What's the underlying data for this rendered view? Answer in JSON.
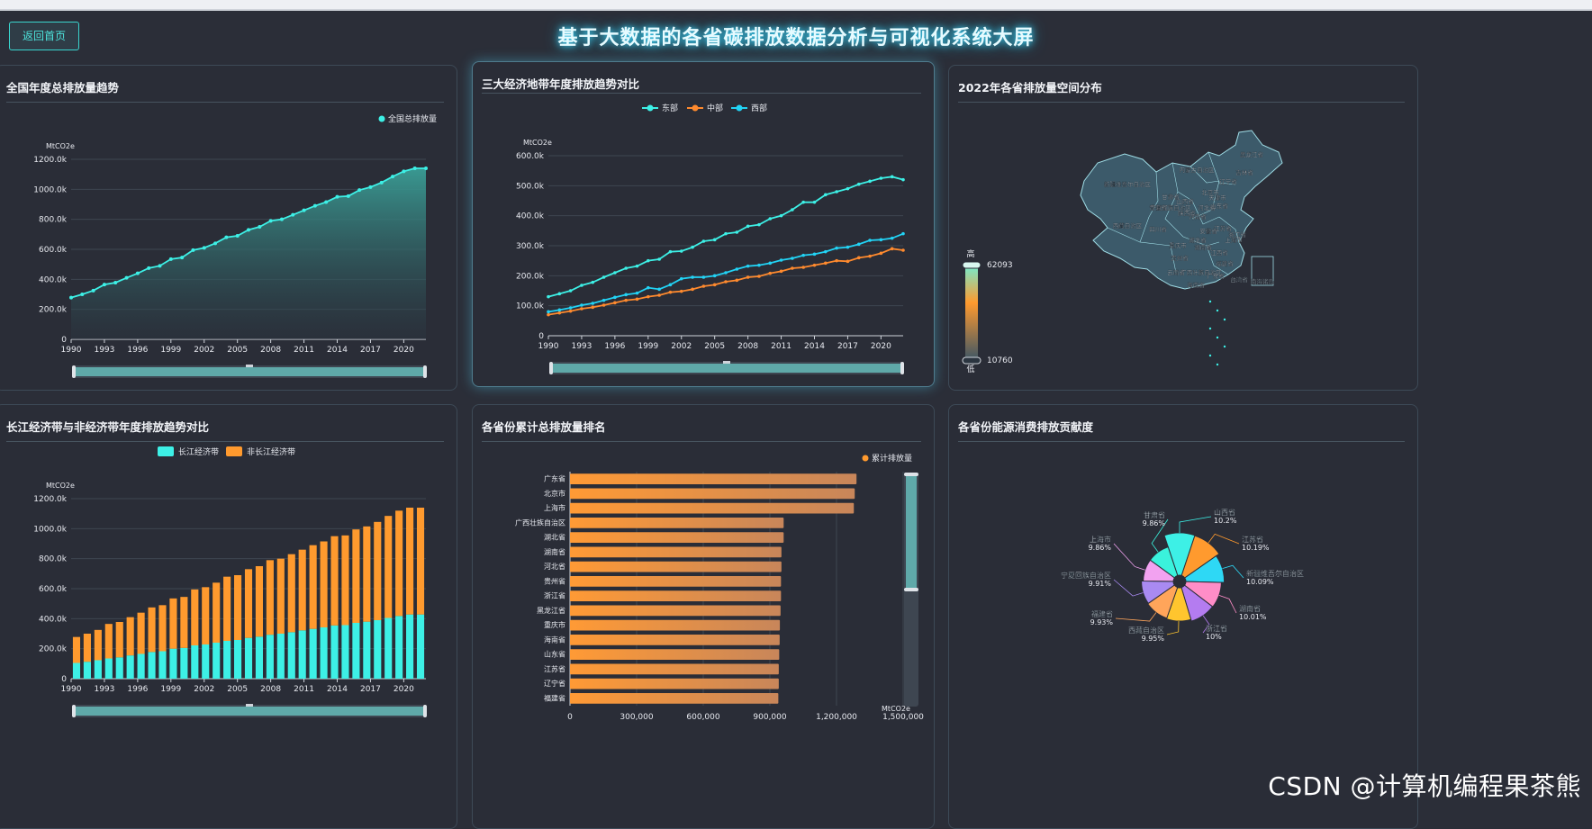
{
  "header": {
    "back_label": "返回首页",
    "title": "基于大数据的各省碳排放数据分析与可视化系统大屏"
  },
  "watermark": "CSDN @计算机编程果茶熊",
  "colors": {
    "cyan": "#3df0e6",
    "orange": "#ff9a2e",
    "teal_area": "#2f8f8a",
    "bg": "#2b2e38"
  },
  "panels": {
    "national": {
      "title": "全国年度总排放量趋势"
    },
    "regions": {
      "title": "三大经济地带年度排放趋势对比"
    },
    "map": {
      "title": "2022年各省排放量空间分布"
    },
    "yangtze": {
      "title": "长江经济带与非经济带年度排放趋势对比"
    },
    "ranking": {
      "title": "各省份累计总排放量排名"
    },
    "energy": {
      "title": "各省份能源消费排放贡献度"
    }
  },
  "map_data": {
    "legend_high": "高",
    "legend_low": "低",
    "max": "62093",
    "min": "10760",
    "labels": [
      "黑龙江省",
      "吉林省",
      "辽宁省",
      "内蒙古自治区",
      "新疆维吾尔自治区",
      "甘肃省",
      "宁夏回族自治区",
      "北京市",
      "天津市",
      "河北省",
      "山西省",
      "陕西省",
      "青海省",
      "山东省",
      "河南省",
      "江苏省",
      "安徽省",
      "上海市",
      "西藏自治区",
      "四川省",
      "湖北省",
      "浙江省",
      "重庆市",
      "湖南省",
      "江西省",
      "贵州省",
      "福建省",
      "云南省",
      "广西壮族自治区",
      "广东省",
      "台湾省",
      "海南省",
      "南海诸岛"
    ]
  },
  "chart_data": [
    {
      "type": "area",
      "id": "national",
      "legend": [
        "全国总排放量"
      ],
      "ylabel": "MtCO2e",
      "ylim": [
        0,
        1200000
      ],
      "yticks": [
        "0",
        "200.0k",
        "400.0k",
        "600.0k",
        "800.0k",
        "1000.0k",
        "1200.0k"
      ],
      "xticks": [
        "1990",
        "1993",
        "1996",
        "1999",
        "2002",
        "2005",
        "2008",
        "2011",
        "2014",
        "2017",
        "2020"
      ],
      "x": [
        1990,
        1991,
        1992,
        1993,
        1994,
        1995,
        1996,
        1997,
        1998,
        1999,
        2000,
        2001,
        2002,
        2003,
        2004,
        2005,
        2006,
        2007,
        2008,
        2009,
        2010,
        2011,
        2012,
        2013,
        2014,
        2015,
        2016,
        2017,
        2018,
        2019,
        2020,
        2021,
        2022
      ],
      "series": [
        {
          "name": "全国总排放量",
          "values": [
            278000,
            300000,
            325000,
            365000,
            378000,
            410000,
            440000,
            475000,
            490000,
            535000,
            545000,
            595000,
            610000,
            640000,
            680000,
            690000,
            730000,
            750000,
            790000,
            800000,
            830000,
            860000,
            890000,
            915000,
            950000,
            955000,
            995000,
            1015000,
            1045000,
            1085000,
            1120000,
            1140000,
            1140000
          ]
        }
      ]
    },
    {
      "type": "line",
      "id": "regions",
      "legend": [
        "东部",
        "中部",
        "西部"
      ],
      "ylabel": "MtCO2e",
      "ylim": [
        0,
        600000
      ],
      "yticks": [
        "0",
        "100.0k",
        "200.0k",
        "300.0k",
        "400.0k",
        "500.0k",
        "600.0k"
      ],
      "xticks": [
        "1990",
        "1993",
        "1996",
        "1999",
        "2002",
        "2005",
        "2008",
        "2011",
        "2014",
        "2017",
        "2020"
      ],
      "x": [
        1990,
        1991,
        1992,
        1993,
        1994,
        1995,
        1996,
        1997,
        1998,
        1999,
        2000,
        2001,
        2002,
        2003,
        2004,
        2005,
        2006,
        2007,
        2008,
        2009,
        2010,
        2011,
        2012,
        2013,
        2014,
        2015,
        2016,
        2017,
        2018,
        2019,
        2020,
        2021,
        2022
      ],
      "series": [
        {
          "name": "东部",
          "values": [
            130000,
            140000,
            150000,
            168000,
            178000,
            195000,
            210000,
            225000,
            232000,
            250000,
            255000,
            280000,
            282000,
            295000,
            315000,
            320000,
            340000,
            345000,
            365000,
            370000,
            390000,
            400000,
            420000,
            445000,
            445000,
            470000,
            480000,
            490000,
            505000,
            515000,
            525000,
            530000,
            520000
          ]
        },
        {
          "name": "中部",
          "values": [
            70000,
            76000,
            82000,
            90000,
            95000,
            102000,
            110000,
            118000,
            122000,
            130000,
            135000,
            145000,
            148000,
            155000,
            165000,
            170000,
            180000,
            185000,
            195000,
            198000,
            208000,
            215000,
            225000,
            228000,
            235000,
            242000,
            250000,
            248000,
            260000,
            265000,
            275000,
            290000,
            285000
          ]
        },
        {
          "name": "西部",
          "values": [
            80000,
            86000,
            93000,
            102000,
            108000,
            118000,
            128000,
            137000,
            142000,
            160000,
            155000,
            170000,
            190000,
            195000,
            195000,
            200000,
            210000,
            222000,
            232000,
            235000,
            242000,
            252000,
            258000,
            268000,
            272000,
            280000,
            292000,
            295000,
            305000,
            318000,
            320000,
            325000,
            340000
          ]
        }
      ]
    },
    {
      "type": "bar",
      "id": "yangtze",
      "stacked": true,
      "legend": [
        "长江经济带",
        "非长江经济带"
      ],
      "ylabel": "MtCO2e",
      "ylim": [
        0,
        1200000
      ],
      "yticks": [
        "0",
        "200.0k",
        "400.0k",
        "600.0k",
        "800.0k",
        "1000.0k",
        "1200.0k"
      ],
      "xticks": [
        "1990",
        "1993",
        "1996",
        "1999",
        "2002",
        "2005",
        "2008",
        "2011",
        "2014",
        "2017",
        "2020"
      ],
      "x": [
        1990,
        1991,
        1992,
        1993,
        1994,
        1995,
        1996,
        1997,
        1998,
        1999,
        2000,
        2001,
        2002,
        2003,
        2004,
        2005,
        2006,
        2007,
        2008,
        2009,
        2010,
        2011,
        2012,
        2013,
        2014,
        2015,
        2016,
        2017,
        2018,
        2019,
        2020,
        2021,
        2022
      ],
      "series": [
        {
          "name": "长江经济带",
          "values": [
            105000,
            113000,
            123000,
            135000,
            142000,
            155000,
            165000,
            178000,
            183000,
            200000,
            205000,
            222000,
            228000,
            240000,
            252000,
            258000,
            272000,
            280000,
            293000,
            300000,
            310000,
            322000,
            332000,
            342000,
            355000,
            357000,
            372000,
            380000,
            390000,
            405000,
            418000,
            428000,
            428000
          ]
        },
        {
          "name": "非长江经济带",
          "values": [
            173000,
            187000,
            202000,
            230000,
            236000,
            255000,
            275000,
            297000,
            307000,
            335000,
            340000,
            373000,
            382000,
            400000,
            428000,
            432000,
            458000,
            470000,
            497000,
            500000,
            520000,
            538000,
            558000,
            573000,
            595000,
            598000,
            623000,
            635000,
            655000,
            680000,
            702000,
            712000,
            712000
          ]
        }
      ]
    },
    {
      "type": "bar",
      "id": "ranking",
      "orientation": "horizontal",
      "legend": [
        "累计排放量"
      ],
      "xlabel": "MtCO2e",
      "xlim": [
        0,
        1500000
      ],
      "xticks": [
        "0",
        "300,000",
        "600,000",
        "900,000",
        "1,200,000",
        "1,500,000"
      ],
      "categories": [
        "广东省",
        "北京市",
        "上海市",
        "广西壮族自治区",
        "湖北省",
        "湖南省",
        "河北省",
        "贵州省",
        "浙江省",
        "黑龙江省",
        "重庆市",
        "海南省",
        "山东省",
        "江苏省",
        "辽宁省",
        "福建省"
      ],
      "values": [
        1290000,
        1282000,
        1278000,
        962000,
        962000,
        952000,
        952000,
        950000,
        950000,
        948000,
        945000,
        944000,
        942000,
        940000,
        940000,
        938000
      ]
    },
    {
      "type": "pie",
      "id": "energy",
      "rose": true,
      "slices": [
        {
          "name": "山西省",
          "value": 10.2,
          "label": "10.2%",
          "color": "#3df0e6"
        },
        {
          "name": "江苏省",
          "value": 10.19,
          "label": "10.19%",
          "color": "#ff9a2e"
        },
        {
          "name": "新疆维吾尔自治区",
          "value": 10.09,
          "label": "10.09%",
          "color": "#2ed8f5"
        },
        {
          "name": "湖南省",
          "value": 10.01,
          "label": "10.01%",
          "color": "#ff8dc7"
        },
        {
          "name": "浙江省",
          "value": 10,
          "label": "10%",
          "color": "#b47cf0"
        },
        {
          "name": "西藏自治区",
          "value": 9.95,
          "label": "9.95%",
          "color": "#ffc52e"
        },
        {
          "name": "福建省",
          "value": 9.93,
          "label": "9.93%",
          "color": "#ffa55a"
        },
        {
          "name": "宁夏回族自治区",
          "value": 9.91,
          "label": "9.91%",
          "color": "#a98af2"
        },
        {
          "name": "上海市",
          "value": 9.86,
          "label": "9.86%",
          "color": "#f2a2f0"
        },
        {
          "name": "甘肃省",
          "value": 9.86,
          "label": "9.86%",
          "color": "#3af2dc"
        }
      ]
    }
  ]
}
